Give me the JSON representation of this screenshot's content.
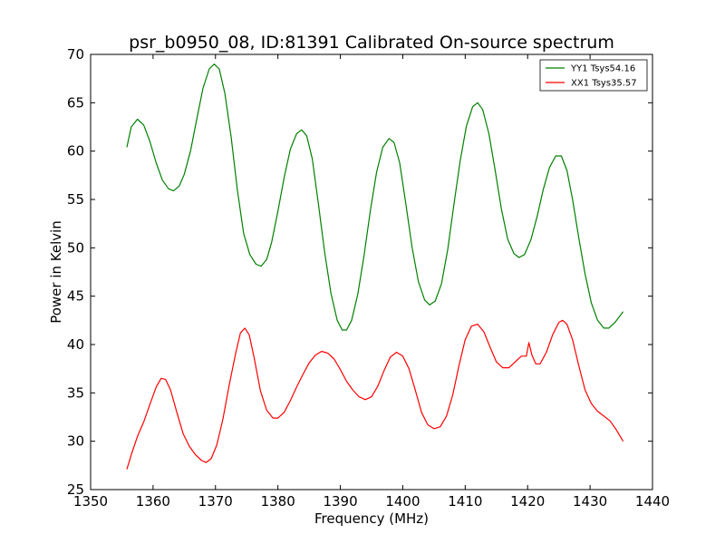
{
  "chart_data": {
    "type": "line",
    "title": "psr_b0950_08, ID:81391 Calibrated On-source spectrum",
    "xlabel": "Frequency (MHz)",
    "ylabel": "Power in Kelvin",
    "xlim": [
      1350,
      1440
    ],
    "ylim": [
      25,
      70
    ],
    "xticks": [
      1350,
      1360,
      1370,
      1380,
      1390,
      1400,
      1410,
      1420,
      1430,
      1440
    ],
    "yticks": [
      25,
      30,
      35,
      40,
      45,
      50,
      55,
      60,
      65,
      70
    ],
    "grid": false,
    "legend_position": "top-right",
    "series": [
      {
        "name": "YY1 Tsys54.16",
        "color": "#008000",
        "points": [
          [
            1355.8,
            60.4
          ],
          [
            1356.5,
            62.5
          ],
          [
            1357.5,
            63.3
          ],
          [
            1358.5,
            62.7
          ],
          [
            1359.5,
            61.0
          ],
          [
            1360.5,
            58.8
          ],
          [
            1361.5,
            57.0
          ],
          [
            1362.5,
            56.1
          ],
          [
            1363.3,
            55.9
          ],
          [
            1364.2,
            56.4
          ],
          [
            1365.0,
            57.6
          ],
          [
            1366.0,
            60.0
          ],
          [
            1367.0,
            63.3
          ],
          [
            1368.0,
            66.5
          ],
          [
            1369.0,
            68.5
          ],
          [
            1369.8,
            69.0
          ],
          [
            1370.6,
            68.5
          ],
          [
            1371.5,
            66.0
          ],
          [
            1372.5,
            61.5
          ],
          [
            1373.5,
            56.0
          ],
          [
            1374.5,
            51.5
          ],
          [
            1375.5,
            49.3
          ],
          [
            1376.5,
            48.3
          ],
          [
            1377.3,
            48.1
          ],
          [
            1378.2,
            48.8
          ],
          [
            1379.0,
            50.6
          ],
          [
            1380.0,
            53.8
          ],
          [
            1381.0,
            57.3
          ],
          [
            1382.0,
            60.2
          ],
          [
            1383.0,
            61.8
          ],
          [
            1383.8,
            62.2
          ],
          [
            1384.6,
            61.6
          ],
          [
            1385.5,
            59.2
          ],
          [
            1386.5,
            54.5
          ],
          [
            1387.5,
            49.5
          ],
          [
            1388.5,
            45.3
          ],
          [
            1389.5,
            42.5
          ],
          [
            1390.3,
            41.5
          ],
          [
            1391.0,
            41.5
          ],
          [
            1391.8,
            42.5
          ],
          [
            1392.8,
            45.2
          ],
          [
            1393.8,
            49.2
          ],
          [
            1394.8,
            53.8
          ],
          [
            1395.8,
            57.8
          ],
          [
            1396.8,
            60.4
          ],
          [
            1397.8,
            61.3
          ],
          [
            1398.6,
            60.9
          ],
          [
            1399.5,
            58.8
          ],
          [
            1400.5,
            54.5
          ],
          [
            1401.5,
            50.0
          ],
          [
            1402.5,
            46.5
          ],
          [
            1403.5,
            44.6
          ],
          [
            1404.3,
            44.1
          ],
          [
            1405.2,
            44.5
          ],
          [
            1406.2,
            46.3
          ],
          [
            1407.2,
            49.8
          ],
          [
            1408.2,
            54.5
          ],
          [
            1409.2,
            59.0
          ],
          [
            1410.2,
            62.6
          ],
          [
            1411.2,
            64.6
          ],
          [
            1412.0,
            65.0
          ],
          [
            1412.8,
            64.3
          ],
          [
            1413.8,
            61.8
          ],
          [
            1414.8,
            58.0
          ],
          [
            1415.8,
            54.0
          ],
          [
            1416.8,
            50.9
          ],
          [
            1417.8,
            49.4
          ],
          [
            1418.6,
            49.0
          ],
          [
            1419.5,
            49.3
          ],
          [
            1420.5,
            50.8
          ],
          [
            1421.5,
            53.2
          ],
          [
            1422.5,
            56.0
          ],
          [
            1423.5,
            58.3
          ],
          [
            1424.5,
            59.5
          ],
          [
            1425.4,
            59.5
          ],
          [
            1426.3,
            58.0
          ],
          [
            1427.2,
            55.0
          ],
          [
            1428.2,
            51.0
          ],
          [
            1429.2,
            47.3
          ],
          [
            1430.2,
            44.3
          ],
          [
            1431.2,
            42.5
          ],
          [
            1432.2,
            41.7
          ],
          [
            1433.0,
            41.7
          ],
          [
            1434.0,
            42.3
          ],
          [
            1435.3,
            43.4
          ]
        ]
      },
      {
        "name": "XX1 Tsys35.57",
        "color": "#ff0000",
        "points": [
          [
            1355.8,
            27.1
          ],
          [
            1356.6,
            28.8
          ],
          [
            1357.5,
            30.5
          ],
          [
            1358.5,
            32.0
          ],
          [
            1359.5,
            33.8
          ],
          [
            1360.5,
            35.6
          ],
          [
            1361.3,
            36.5
          ],
          [
            1362.0,
            36.4
          ],
          [
            1362.8,
            35.3
          ],
          [
            1363.8,
            33.0
          ],
          [
            1364.8,
            30.8
          ],
          [
            1365.8,
            29.5
          ],
          [
            1366.8,
            28.6
          ],
          [
            1367.8,
            28.0
          ],
          [
            1368.5,
            27.8
          ],
          [
            1369.3,
            28.2
          ],
          [
            1370.2,
            29.6
          ],
          [
            1371.2,
            32.3
          ],
          [
            1372.2,
            35.8
          ],
          [
            1373.2,
            39.0
          ],
          [
            1374.0,
            41.2
          ],
          [
            1374.7,
            41.7
          ],
          [
            1375.4,
            41.0
          ],
          [
            1376.2,
            38.6
          ],
          [
            1377.2,
            35.2
          ],
          [
            1378.2,
            33.2
          ],
          [
            1379.2,
            32.4
          ],
          [
            1380.0,
            32.4
          ],
          [
            1381.0,
            33.0
          ],
          [
            1382.0,
            34.2
          ],
          [
            1383.0,
            35.6
          ],
          [
            1384.0,
            36.9
          ],
          [
            1385.0,
            38.1
          ],
          [
            1386.0,
            38.9
          ],
          [
            1387.0,
            39.3
          ],
          [
            1388.0,
            39.1
          ],
          [
            1389.0,
            38.5
          ],
          [
            1390.0,
            37.4
          ],
          [
            1391.0,
            36.2
          ],
          [
            1392.0,
            35.3
          ],
          [
            1393.0,
            34.6
          ],
          [
            1394.0,
            34.3
          ],
          [
            1395.0,
            34.6
          ],
          [
            1396.0,
            35.7
          ],
          [
            1397.0,
            37.3
          ],
          [
            1398.0,
            38.7
          ],
          [
            1399.0,
            39.2
          ],
          [
            1400.0,
            38.8
          ],
          [
            1401.0,
            37.5
          ],
          [
            1402.0,
            35.3
          ],
          [
            1403.0,
            33.0
          ],
          [
            1404.0,
            31.7
          ],
          [
            1405.0,
            31.3
          ],
          [
            1406.0,
            31.5
          ],
          [
            1407.0,
            32.6
          ],
          [
            1408.0,
            34.8
          ],
          [
            1409.0,
            37.8
          ],
          [
            1410.0,
            40.5
          ],
          [
            1411.0,
            41.9
          ],
          [
            1412.0,
            42.1
          ],
          [
            1413.0,
            41.3
          ],
          [
            1414.0,
            39.7
          ],
          [
            1415.0,
            38.2
          ],
          [
            1416.0,
            37.6
          ],
          [
            1417.0,
            37.6
          ],
          [
            1418.0,
            38.2
          ],
          [
            1419.0,
            38.8
          ],
          [
            1419.8,
            38.8
          ],
          [
            1420.2,
            40.2
          ],
          [
            1420.7,
            38.9
          ],
          [
            1421.3,
            38.0
          ],
          [
            1422.0,
            38.0
          ],
          [
            1423.0,
            39.2
          ],
          [
            1424.0,
            41.0
          ],
          [
            1425.0,
            42.3
          ],
          [
            1425.6,
            42.5
          ],
          [
            1426.3,
            42.1
          ],
          [
            1427.2,
            40.5
          ],
          [
            1428.2,
            37.8
          ],
          [
            1429.2,
            35.3
          ],
          [
            1430.2,
            33.9
          ],
          [
            1431.2,
            33.1
          ],
          [
            1432.2,
            32.6
          ],
          [
            1433.2,
            32.1
          ],
          [
            1434.2,
            31.2
          ],
          [
            1435.3,
            30.0
          ]
        ]
      }
    ]
  }
}
